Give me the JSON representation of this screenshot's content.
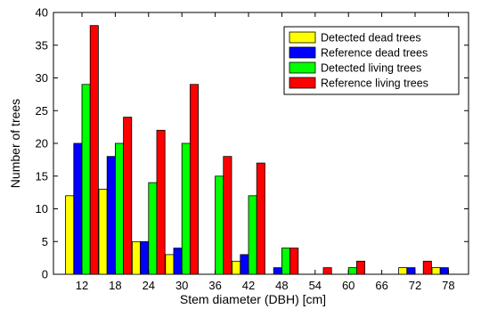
{
  "chart_data": {
    "type": "bar",
    "categories": [
      "12",
      "18",
      "24",
      "30",
      "36",
      "42",
      "48",
      "54",
      "60",
      "66",
      "72",
      "78"
    ],
    "series": [
      {
        "name": "Detected dead trees",
        "color": "#ffff00",
        "values": [
          12,
          13,
          5,
          3,
          0,
          2,
          0,
          0,
          0,
          0,
          1,
          1
        ]
      },
      {
        "name": "Reference dead trees",
        "color": "#0000ff",
        "values": [
          20,
          18,
          5,
          4,
          0,
          3,
          1,
          0,
          0,
          0,
          1,
          1
        ]
      },
      {
        "name": "Detected living trees",
        "color": "#00ff00",
        "values": [
          29,
          20,
          14,
          20,
          15,
          12,
          4,
          0,
          1,
          0,
          0,
          0
        ]
      },
      {
        "name": "Reference living trees",
        "color": "#ff0000",
        "values": [
          38,
          24,
          22,
          29,
          18,
          17,
          4,
          1,
          2,
          0,
          2,
          0
        ]
      }
    ],
    "xlabel": "Stem diameter (DBH) [cm]",
    "ylabel": "Number of trees",
    "ylim": [
      0,
      40
    ],
    "yticks": [
      0,
      5,
      10,
      15,
      20,
      25,
      30,
      35,
      40
    ],
    "legend_position": "top-right",
    "grid": false
  }
}
